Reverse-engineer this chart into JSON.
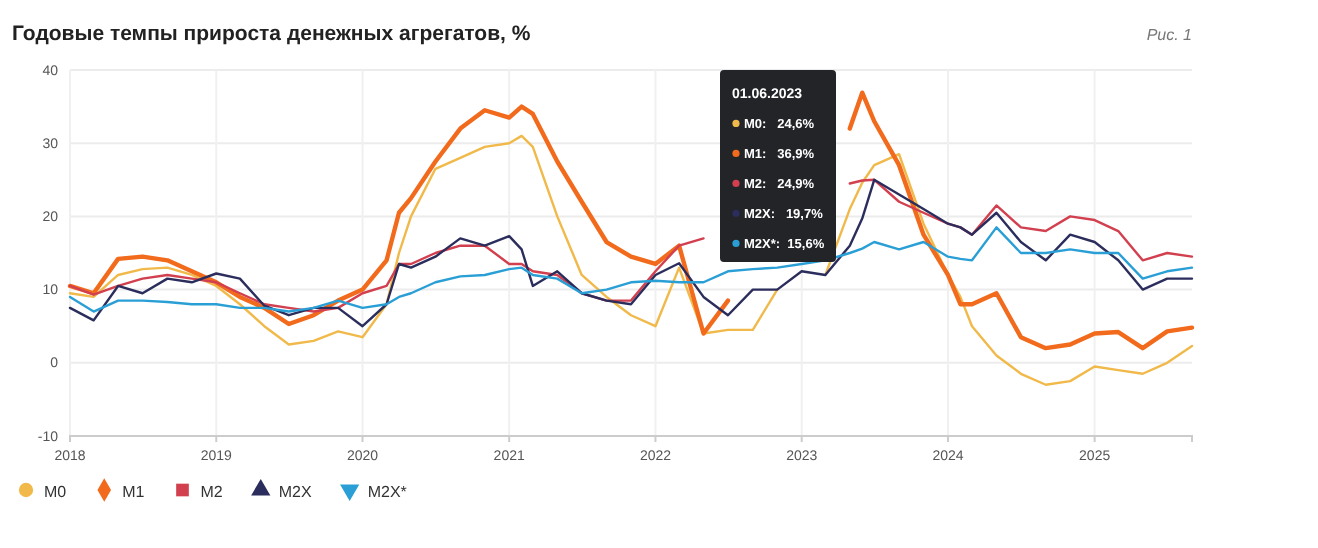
{
  "chart_data": {
    "type": "line",
    "title": "Годовые темпы прироста денежных агрегатов, %",
    "annotations": [
      "Рис. 1",
      "01.06.2023",
      "M0:   24,6%",
      "M1:   36,9%",
      "M2:   24,9%",
      "M2X:   19,7%",
      "M2X*:  15,6%"
    ],
    "x": [
      "2018-01",
      "2018-03",
      "2018-05",
      "2018-07",
      "2018-09",
      "2018-11",
      "2019-01",
      "2019-03",
      "2019-05",
      "2019-07",
      "2019-09",
      "2019-11",
      "2020-01",
      "2020-03",
      "2020-04",
      "2020-05",
      "2020-07",
      "2020-09",
      "2020-11",
      "2021-01",
      "2021-02",
      "2021-03",
      "2021-05",
      "2021-07",
      "2021-09",
      "2021-11",
      "2022-01",
      "2022-03",
      "2022-05",
      "2022-07",
      "2022-09",
      "2022-11",
      "2023-01",
      "2023-03",
      "2023-05",
      "2023-06",
      "2023-07",
      "2023-09",
      "2023-11",
      "2024-01",
      "2024-02",
      "2024-03",
      "2024-05",
      "2024-07",
      "2024-09",
      "2024-11",
      "2025-01",
      "2025-03",
      "2025-05",
      "2025-07",
      "2025-09"
    ],
    "series": [
      {
        "name": "M0",
        "color": "#f0b94a",
        "values": [
          9.5,
          9,
          12,
          12.8,
          13,
          12,
          10.5,
          8,
          5,
          2.5,
          3,
          4.3,
          3.5,
          8,
          15,
          20,
          26.5,
          28,
          29.5,
          30,
          31,
          29.5,
          20,
          12,
          9,
          6.5,
          5,
          13,
          4,
          4.5,
          4.5,
          10,
          null,
          12,
          21,
          24.6,
          27,
          28.5,
          19,
          12,
          9,
          5,
          1,
          -1.5,
          -3,
          -2.5,
          -0.5,
          -1,
          -1.5,
          0,
          2.3
        ]
      },
      {
        "name": "M1",
        "color": "#f26a1b",
        "values": [
          10.5,
          9.5,
          14.2,
          14.5,
          14,
          12.5,
          11,
          9,
          7.5,
          5.3,
          6.5,
          8.5,
          10,
          14,
          20.5,
          22.5,
          27.5,
          32,
          34.5,
          33.5,
          35,
          34,
          27.5,
          22,
          16.5,
          14.5,
          13.5,
          16,
          4,
          8.5,
          null,
          null,
          null,
          null,
          32,
          36.9,
          33,
          27,
          17.5,
          12,
          8,
          8,
          9.5,
          3.5,
          2,
          2.5,
          4,
          4.2,
          2,
          4.3,
          4.8
        ]
      },
      {
        "name": "M2",
        "color": "#d23f4e",
        "values": [
          10.5,
          9.3,
          10.5,
          11.5,
          12,
          11.5,
          11,
          9.5,
          8,
          7.5,
          7,
          7.5,
          9.5,
          10.5,
          13.5,
          13.5,
          15,
          16,
          16,
          13.5,
          13.5,
          12.5,
          12,
          9.5,
          8.5,
          8.5,
          12.5,
          16,
          17,
          null,
          null,
          null,
          null,
          null,
          24.5,
          24.9,
          25,
          22,
          20.5,
          19,
          18.5,
          17.5,
          21.5,
          18.5,
          18,
          20,
          19.5,
          18,
          14,
          15,
          14.5
        ]
      },
      {
        "name": "M2X",
        "color": "#2b2d5c",
        "values": [
          7.5,
          5.8,
          10.5,
          9.5,
          11.5,
          11,
          12.2,
          11.5,
          7.8,
          6.5,
          7.5,
          7.5,
          5,
          8,
          13.5,
          13,
          14.5,
          17,
          16,
          17.3,
          15.5,
          10.5,
          12.5,
          9.5,
          8.5,
          8,
          12,
          13.6,
          9,
          6.5,
          10,
          10,
          12.5,
          12,
          16,
          19.7,
          25,
          23,
          21,
          19,
          18.5,
          17.5,
          20.5,
          16.5,
          14,
          17.5,
          16.5,
          14,
          10,
          11.5,
          11.5
        ]
      },
      {
        "name": "M2X*",
        "color": "#2a9fd6",
        "values": [
          9,
          7,
          8.5,
          8.5,
          8.3,
          8,
          8,
          7.5,
          7.5,
          7,
          7.5,
          8.5,
          7.5,
          8,
          9,
          9.5,
          11,
          11.8,
          12,
          12.8,
          13,
          12,
          11.5,
          9.5,
          10,
          11,
          11.2,
          11,
          11,
          12.5,
          12.8,
          13,
          13.5,
          14,
          15,
          15.6,
          16.5,
          15.5,
          16.5,
          14.5,
          14.2,
          14,
          18.5,
          15,
          15,
          15.5,
          15,
          15,
          11.5,
          12.5,
          13
        ]
      }
    ],
    "xlim": [
      "2018-01",
      "2025-09"
    ],
    "xticks": [
      "2018",
      "2019",
      "2020",
      "2021",
      "2022",
      "2023",
      "2024",
      "2025"
    ],
    "ylim": [
      -10,
      40
    ],
    "yticks": [
      -10,
      0,
      10,
      20,
      30,
      40
    ],
    "grid": true,
    "legend": "bottom left",
    "line_style": "solid"
  }
}
